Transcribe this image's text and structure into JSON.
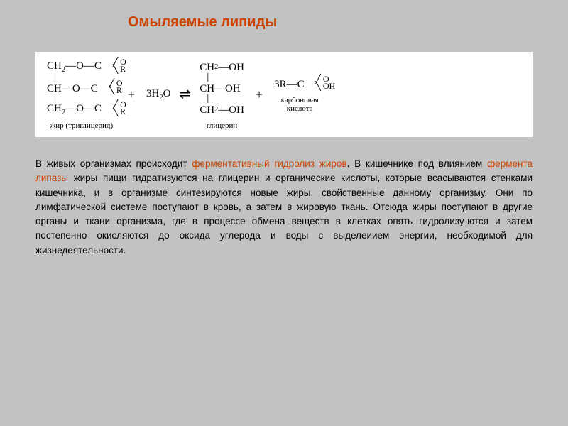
{
  "title": "Омыляемые липиды",
  "title_color": "#cc4400",
  "highlight_color": "#cc4400",
  "background_color": "#c2c2c2",
  "reaction_bg": "#ffffff",
  "body_fontsize": 13.5,
  "reaction": {
    "reagent1": {
      "rows": [
        "CH₂—O—C",
        "CH—O—C",
        "CH₂—O—C"
      ],
      "r_group": "R",
      "o_double": "O",
      "label": "жир (триглицерид)"
    },
    "plus1": "+",
    "water": "3H₂O",
    "equil": "⇌",
    "product1": {
      "rows": [
        "CH₂—OH",
        "CH—OH",
        "CH₂—OH"
      ],
      "label": "глицерин"
    },
    "plus2": "+",
    "product2": {
      "coef": "3R—C",
      "o_double": "O",
      "oh": "OH",
      "label": "карбоновая\nкислота"
    }
  },
  "body": {
    "pre1": "В живых организмах происходит ",
    "hl1": "ферментативный гидролиз жиров",
    "post1": ". В кишечнике под влиянием ",
    "hl2": "фермента липазы",
    "post2": " жиры пищи гидратизуются на глицерин и органические кислоты, которые всасываются стенками кишечника, и в организме синтезируются новые жиры, свойственные данному организму. Они по лимфатической системе поступают в кровь, а затем в жировую ткань. Отсюда жиры поступают в другие органы и ткани организма, где в процессе обмена веществ в клетках опять гидролизу-ются и затем постепенно окисляются до оксида углерода и воды с выделеиием энергии, необходимой для жизнедеятельности."
  }
}
